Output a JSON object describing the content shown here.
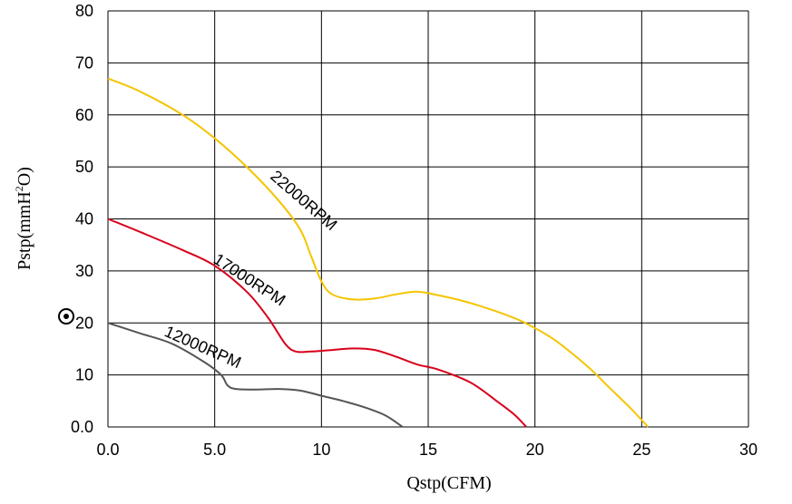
{
  "chart_data": {
    "type": "line",
    "xlabel": "Qstp(CFM)",
    "ylabel": {
      "base": "Pstp(mmH",
      "sup": "2",
      "tail": "O)"
    },
    "xlim": [
      0,
      30
    ],
    "ylim": [
      0,
      80
    ],
    "x_ticks": [
      "0.0",
      "5.0",
      "10",
      "15",
      "20",
      "25",
      "30"
    ],
    "y_ticks": [
      "0.0",
      "10",
      "20",
      "30",
      "40",
      "50",
      "60",
      "70",
      "80"
    ],
    "grid": true,
    "series": [
      {
        "name": "22000RPM",
        "color": "#f5c400",
        "points": [
          [
            0,
            67
          ],
          [
            1.5,
            64.5
          ],
          [
            3.5,
            60
          ],
          [
            5,
            55.5
          ],
          [
            6.5,
            50
          ],
          [
            8,
            43.5
          ],
          [
            9,
            38
          ],
          [
            9.5,
            33
          ],
          [
            10,
            28
          ],
          [
            10.5,
            25.5
          ],
          [
            11.5,
            24.5
          ],
          [
            12.5,
            24.7
          ],
          [
            13.5,
            25.5
          ],
          [
            14.5,
            26
          ],
          [
            15.5,
            25.3
          ],
          [
            17,
            23.8
          ],
          [
            19,
            21
          ],
          [
            20,
            19
          ],
          [
            21,
            16.5
          ],
          [
            22.5,
            11.5
          ],
          [
            23.5,
            7.5
          ],
          [
            24.5,
            3.5
          ],
          [
            25.3,
            0
          ]
        ]
      },
      {
        "name": "17000RPM",
        "color": "#d8001c",
        "points": [
          [
            0,
            40
          ],
          [
            1.5,
            37.5
          ],
          [
            3.5,
            34
          ],
          [
            5,
            31
          ],
          [
            6.5,
            26
          ],
          [
            7.5,
            21
          ],
          [
            8.3,
            16
          ],
          [
            8.8,
            14.5
          ],
          [
            9.5,
            14.5
          ],
          [
            10.5,
            14.8
          ],
          [
            11.5,
            15.1
          ],
          [
            12.5,
            14.8
          ],
          [
            13.5,
            13.5
          ],
          [
            14.5,
            12
          ],
          [
            15.5,
            11
          ],
          [
            17,
            8.5
          ],
          [
            18.2,
            5
          ],
          [
            19,
            2.5
          ],
          [
            19.6,
            0
          ]
        ]
      },
      {
        "name": "12000RPM",
        "color": "#555555",
        "points": [
          [
            0,
            20
          ],
          [
            1.5,
            18
          ],
          [
            3,
            16
          ],
          [
            4.5,
            12.5
          ],
          [
            5.3,
            10
          ],
          [
            5.6,
            8
          ],
          [
            6,
            7.3
          ],
          [
            7,
            7.2
          ],
          [
            8,
            7.3
          ],
          [
            9,
            7
          ],
          [
            10,
            6
          ],
          [
            11,
            5
          ],
          [
            12,
            3.8
          ],
          [
            13,
            2.2
          ],
          [
            13.8,
            0
          ]
        ]
      }
    ],
    "annotations": [
      {
        "text": "22000RPM",
        "series": "22000RPM"
      },
      {
        "text": "17000RPM",
        "series": "17000RPM"
      },
      {
        "text": "12000RPM",
        "series": "12000RPM"
      }
    ]
  }
}
